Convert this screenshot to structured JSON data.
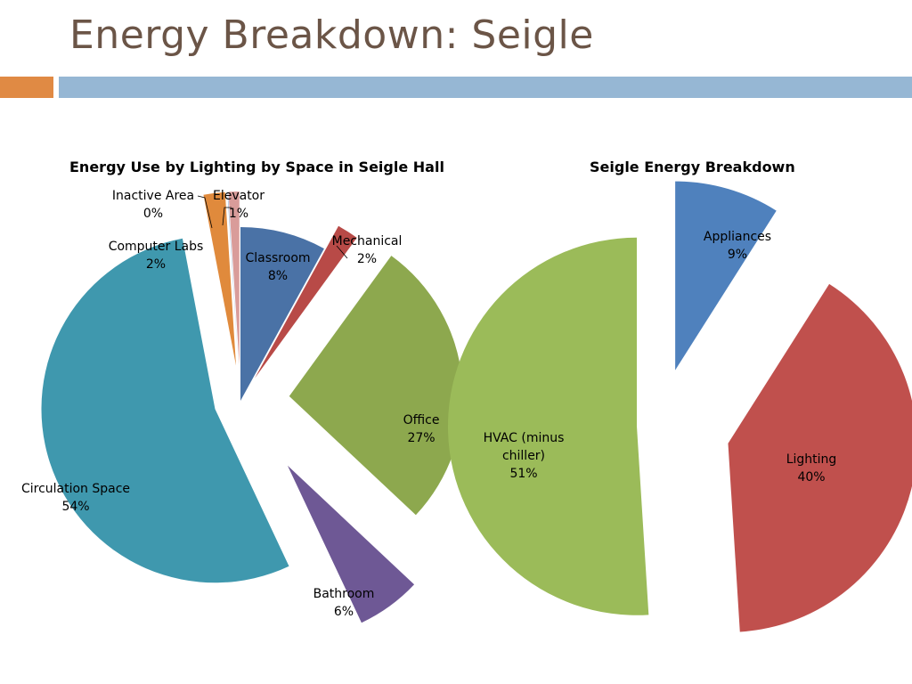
{
  "slide": {
    "title": "Energy Breakdown: Seigle",
    "accent_colors": {
      "orange": "#e08a44",
      "blue": "#96b7d4",
      "title_text": "#6b5547"
    }
  },
  "chart_data": [
    {
      "type": "pie",
      "title": "Energy Use by Lighting by Space in Seigle Hall",
      "slices": [
        {
          "label": "Classroom",
          "value": 8,
          "display": "8%",
          "color": "#4a72a6"
        },
        {
          "label": "Mechanical",
          "value": 2,
          "display": "2%",
          "color": "#b84a47"
        },
        {
          "label": "Office",
          "value": 27,
          "display": "27%",
          "color": "#8da84e"
        },
        {
          "label": "Bathroom",
          "value": 6,
          "display": "6%",
          "color": "#6e5895"
        },
        {
          "label": "Circulation Space",
          "value": 54,
          "display": "54%",
          "color": "#3f98ae"
        },
        {
          "label": "Computer Labs",
          "value": 2,
          "display": "2%",
          "color": "#e08a3c"
        },
        {
          "label": "Inactive Area",
          "value": 0,
          "display": "0%",
          "color": "#a8bfdc"
        },
        {
          "label": "Elevator",
          "value": 1,
          "display": "1%",
          "color": "#d99c9a"
        }
      ],
      "legend": "none",
      "exploded": true
    },
    {
      "type": "pie",
      "title": "Seigle Energy Breakdown",
      "slices": [
        {
          "label": "Appliances",
          "value": 9,
          "display": "9%",
          "color": "#4f81bd"
        },
        {
          "label": "Lighting",
          "value": 40,
          "display": "40%",
          "color": "#c0504d"
        },
        {
          "label": "HVAC (minus chiller)",
          "value": 51,
          "display": "51%",
          "color": "#9bbb59"
        }
      ],
      "legend": "none",
      "exploded": true
    }
  ]
}
